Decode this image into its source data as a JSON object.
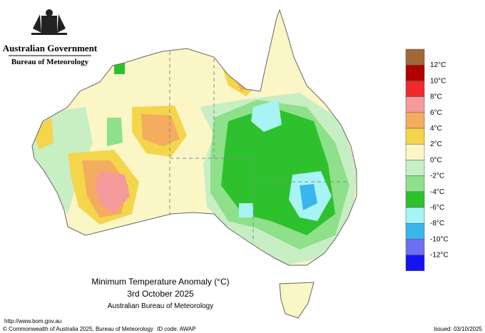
{
  "header": {
    "government": "Australian Government",
    "agency": "Bureau of Meteorology"
  },
  "map_title": {
    "line1": "Minimum Temperature Anomaly (°C)",
    "line2": "3rd October 2025",
    "line3": "Australian Bureau of Meteorology"
  },
  "legend": {
    "colors": [
      "#a0683a",
      "#b00000",
      "#ee2a2a",
      "#f59a9a",
      "#f4ac5e",
      "#f3d64c",
      "#fbf6c6",
      "#c8eec4",
      "#8ee08a",
      "#2ec12e",
      "#a8f4f4",
      "#3ab6ee",
      "#6e6ef0",
      "#1414f0"
    ],
    "labels": [
      "12°C",
      "10°C",
      "8°C",
      "6°C",
      "4°C",
      "2°C",
      "0°C",
      "-2°C",
      "-4°C",
      "-6°C",
      "-8°C",
      "-10°C",
      "-12°C"
    ]
  },
  "footer": {
    "url": "http://www.bom.gov.au",
    "copyright": "© Commonwealth of Australia 2025, Bureau of Meteorology",
    "id_code": "ID code: AWAP",
    "issued": "Issued: 03/10/2025"
  }
}
